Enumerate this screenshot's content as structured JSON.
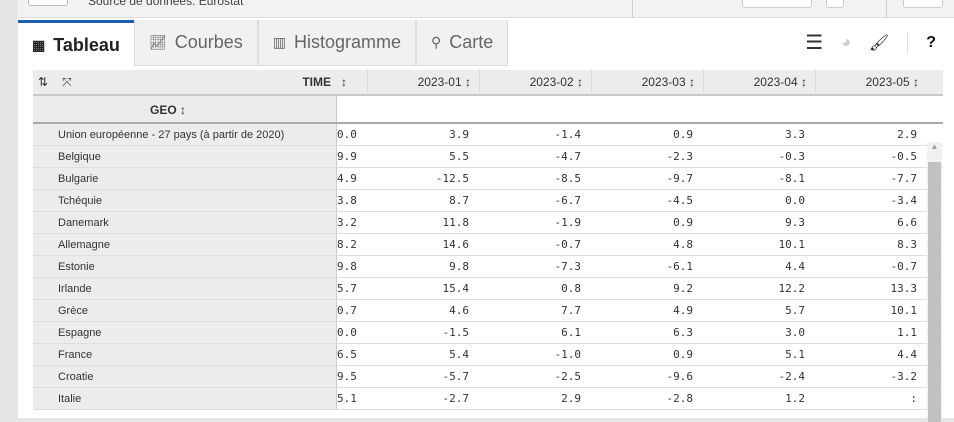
{
  "topbar": {
    "source": "Source de données: Eurostat"
  },
  "tabs": [
    {
      "label": "Tableau",
      "icon": "table-icon"
    },
    {
      "label": "Courbes",
      "icon": "line-chart-icon"
    },
    {
      "label": "Histogramme",
      "icon": "bar-chart-icon"
    },
    {
      "label": "Carte",
      "icon": "map-pin-icon"
    }
  ],
  "active_tab": "Tableau",
  "header": {
    "time_label": "TIME",
    "geo_label": "GEO",
    "columns": [
      "2023-01",
      "2023-02",
      "2023-03",
      "2023-04",
      "2023-05"
    ]
  },
  "rows": [
    {
      "geo": "Union européenne - 27 pays (à partir de 2020)",
      "prev": "0.0",
      "values": [
        "3.9",
        "-1.4",
        "0.9",
        "3.3",
        "2.9"
      ]
    },
    {
      "geo": "Belgique",
      "prev": "9.9",
      "values": [
        "5.5",
        "-4.7",
        "-2.3",
        "-0.3",
        "-0.5"
      ]
    },
    {
      "geo": "Bulgarie",
      "prev": "4.9",
      "values": [
        "-12.5",
        "-8.5",
        "-9.7",
        "-8.1",
        "-7.7"
      ]
    },
    {
      "geo": "Tchéquie",
      "prev": "3.8",
      "values": [
        "8.7",
        "-6.7",
        "-4.5",
        "0.0",
        "-3.4"
      ]
    },
    {
      "geo": "Danemark",
      "prev": "3.2",
      "values": [
        "11.8",
        "-1.9",
        "0.9",
        "9.3",
        "6.6"
      ]
    },
    {
      "geo": "Allemagne",
      "prev": "8.2",
      "values": [
        "14.6",
        "-0.7",
        "4.8",
        "10.1",
        "8.3"
      ]
    },
    {
      "geo": "Estonie",
      "prev": "9.8",
      "values": [
        "9.8",
        "-7.3",
        "-6.1",
        "4.4",
        "-0.7"
      ]
    },
    {
      "geo": "Irlande",
      "prev": "5.7",
      "values": [
        "15.4",
        "0.8",
        "9.2",
        "12.2",
        "13.3"
      ]
    },
    {
      "geo": "Grèce",
      "prev": "0.7",
      "values": [
        "4.6",
        "7.7",
        "4.9",
        "5.7",
        "10.1"
      ]
    },
    {
      "geo": "Espagne",
      "prev": "0.0",
      "values": [
        "-1.5",
        "6.1",
        "6.3",
        "3.0",
        "1.1"
      ]
    },
    {
      "geo": "France",
      "prev": "6.5",
      "values": [
        "5.4",
        "-1.0",
        "0.9",
        "5.1",
        "4.4"
      ]
    },
    {
      "geo": "Croatie",
      "prev": "9.5",
      "values": [
        "-5.7",
        "-2.5",
        "-9.6",
        "-2.4",
        "-3.2"
      ]
    },
    {
      "geo": "Italie",
      "prev": "5.1",
      "values": [
        "-2.7",
        "2.9",
        "-2.8",
        "1.2",
        ":"
      ]
    }
  ],
  "colors": {
    "accent": "#1a5fb4"
  }
}
